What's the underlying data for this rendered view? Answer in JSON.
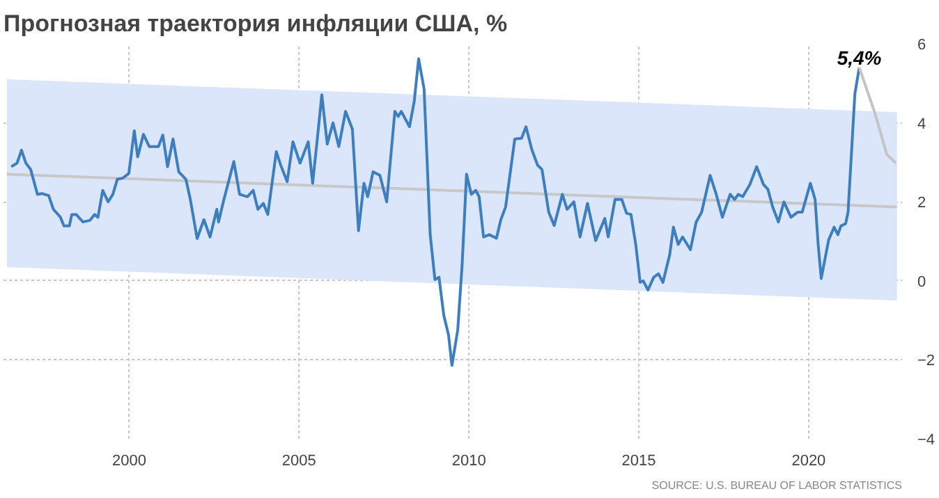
{
  "chart_data": {
    "type": "line",
    "title": "Прогнозная траектория инфляции США, %",
    "xlim": [
      1996.3,
      2022.75
    ],
    "ylim": [
      -4,
      6
    ],
    "xticks": [
      2000,
      2005,
      2010,
      2015,
      2020
    ],
    "yticks": [
      -4,
      -2,
      0,
      2,
      4,
      6
    ],
    "grid": true,
    "line_style": "solid",
    "marker": "none",
    "annotations": [
      {
        "text": "5,4%",
        "x": 2021.49,
        "y": 5.4
      },
      "SOURCE: U.S. BUREAU OF LABOR STATISTICS"
    ],
    "series": [
      {
        "color": "#c8c8c8",
        "x": [
          1996.4,
          2022.6
        ],
        "values": [
          2.7,
          1.87
        ],
        "lower": [
          0.35,
          -0.5
        ],
        "upper": [
          5.1,
          4.27
        ]
      },
      {
        "color": "#3d7ebf",
        "x": [
          1996.53,
          1996.7,
          1996.83,
          1996.96,
          1997.1,
          1997.3,
          1997.43,
          1997.63,
          1997.77,
          1997.97,
          1998.08,
          1998.24,
          1998.31,
          1998.44,
          1998.64,
          1998.84,
          1998.98,
          1999.08,
          1999.22,
          1999.38,
          1999.52,
          1999.65,
          1999.81,
          1999.99,
          2000.15,
          2000.25,
          2000.42,
          2000.59,
          2000.86,
          2000.99,
          2001.13,
          2001.29,
          2001.46,
          2001.67,
          2001.8,
          2002.0,
          2002.2,
          2002.38,
          2002.58,
          2002.63,
          2002.77,
          2003.08,
          2003.25,
          2003.48,
          2003.65,
          2003.79,
          2003.95,
          2004.08,
          2004.33,
          2004.46,
          2004.65,
          2004.82,
          2005.03,
          2005.27,
          2005.4,
          2005.56,
          2005.67,
          2005.83,
          2006.0,
          2006.17,
          2006.37,
          2006.57,
          2006.75,
          2006.91,
          2007.02,
          2007.18,
          2007.38,
          2007.58,
          2007.82,
          2007.92,
          2008.01,
          2008.25,
          2008.39,
          2008.52,
          2008.68,
          2008.86,
          2009.0,
          2009.12,
          2009.26,
          2009.4,
          2009.5,
          2009.67,
          2009.8,
          2009.93,
          2010.07,
          2010.2,
          2010.3,
          2010.43,
          2010.6,
          2010.81,
          2010.94,
          2011.08,
          2011.35,
          2011.55,
          2011.68,
          2011.85,
          2012.02,
          2012.15,
          2012.35,
          2012.51,
          2012.75,
          2012.89,
          2013.09,
          2013.27,
          2013.49,
          2013.73,
          2014.0,
          2014.1,
          2014.3,
          2014.5,
          2014.64,
          2014.77,
          2014.91,
          2015.04,
          2015.13,
          2015.27,
          2015.44,
          2015.58,
          2015.71,
          2015.91,
          2016.02,
          2016.16,
          2016.29,
          2016.52,
          2016.69,
          2016.85,
          2017.1,
          2017.28,
          2017.46,
          2017.69,
          2017.82,
          2017.93,
          2018.06,
          2018.27,
          2018.47,
          2018.67,
          2018.8,
          2018.94,
          2019.11,
          2019.27,
          2019.48,
          2019.68,
          2019.81,
          2020.05,
          2020.19,
          2020.28,
          2020.37,
          2020.59,
          2020.75,
          2020.86,
          2020.95,
          2021.09,
          2021.16,
          2021.36,
          2021.49
        ],
        "values": [
          2.89,
          2.98,
          3.31,
          2.98,
          2.82,
          2.19,
          2.21,
          2.16,
          1.81,
          1.62,
          1.39,
          1.39,
          1.68,
          1.68,
          1.49,
          1.53,
          1.68,
          1.61,
          2.29,
          2.0,
          2.19,
          2.57,
          2.6,
          2.72,
          3.8,
          3.14,
          3.71,
          3.4,
          3.4,
          3.69,
          2.89,
          3.59,
          2.76,
          2.57,
          2.06,
          1.07,
          1.55,
          1.11,
          1.81,
          1.49,
          2.0,
          3.02,
          2.19,
          2.13,
          2.29,
          1.81,
          1.96,
          1.68,
          3.27,
          2.93,
          2.51,
          3.52,
          2.98,
          3.52,
          2.47,
          3.78,
          4.71,
          3.46,
          4.0,
          3.4,
          4.29,
          3.84,
          1.27,
          2.47,
          2.13,
          2.76,
          2.67,
          2.0,
          4.29,
          4.16,
          4.29,
          3.9,
          4.54,
          5.62,
          4.86,
          1.17,
          0.03,
          0.09,
          -0.87,
          -1.37,
          -2.14,
          -1.25,
          0.41,
          2.7,
          2.19,
          2.29,
          2.13,
          1.11,
          1.17,
          1.08,
          1.55,
          1.87,
          3.59,
          3.61,
          3.9,
          3.33,
          2.93,
          2.82,
          1.74,
          1.4,
          2.19,
          1.81,
          2.0,
          1.11,
          1.96,
          1.02,
          1.58,
          1.11,
          2.06,
          2.06,
          1.71,
          1.68,
          0.92,
          -0.04,
          0.0,
          -0.23,
          0.09,
          0.18,
          -0.04,
          0.66,
          1.36,
          0.92,
          1.11,
          0.79,
          1.49,
          1.74,
          2.67,
          2.19,
          1.61,
          2.19,
          2.06,
          2.19,
          2.13,
          2.44,
          2.89,
          2.44,
          2.32,
          1.87,
          1.49,
          2.0,
          1.61,
          1.74,
          1.74,
          2.47,
          2.06,
          0.92,
          0.06,
          1.04,
          1.36,
          1.17,
          1.39,
          1.45,
          1.74,
          4.73,
          5.4
        ]
      },
      {
        "color": "#c4c4c4",
        "x": [
          2021.49,
          2021.96,
          2022.3,
          2022.57
        ],
        "values": [
          5.4,
          4.22,
          3.2,
          2.98
        ]
      }
    ]
  }
}
